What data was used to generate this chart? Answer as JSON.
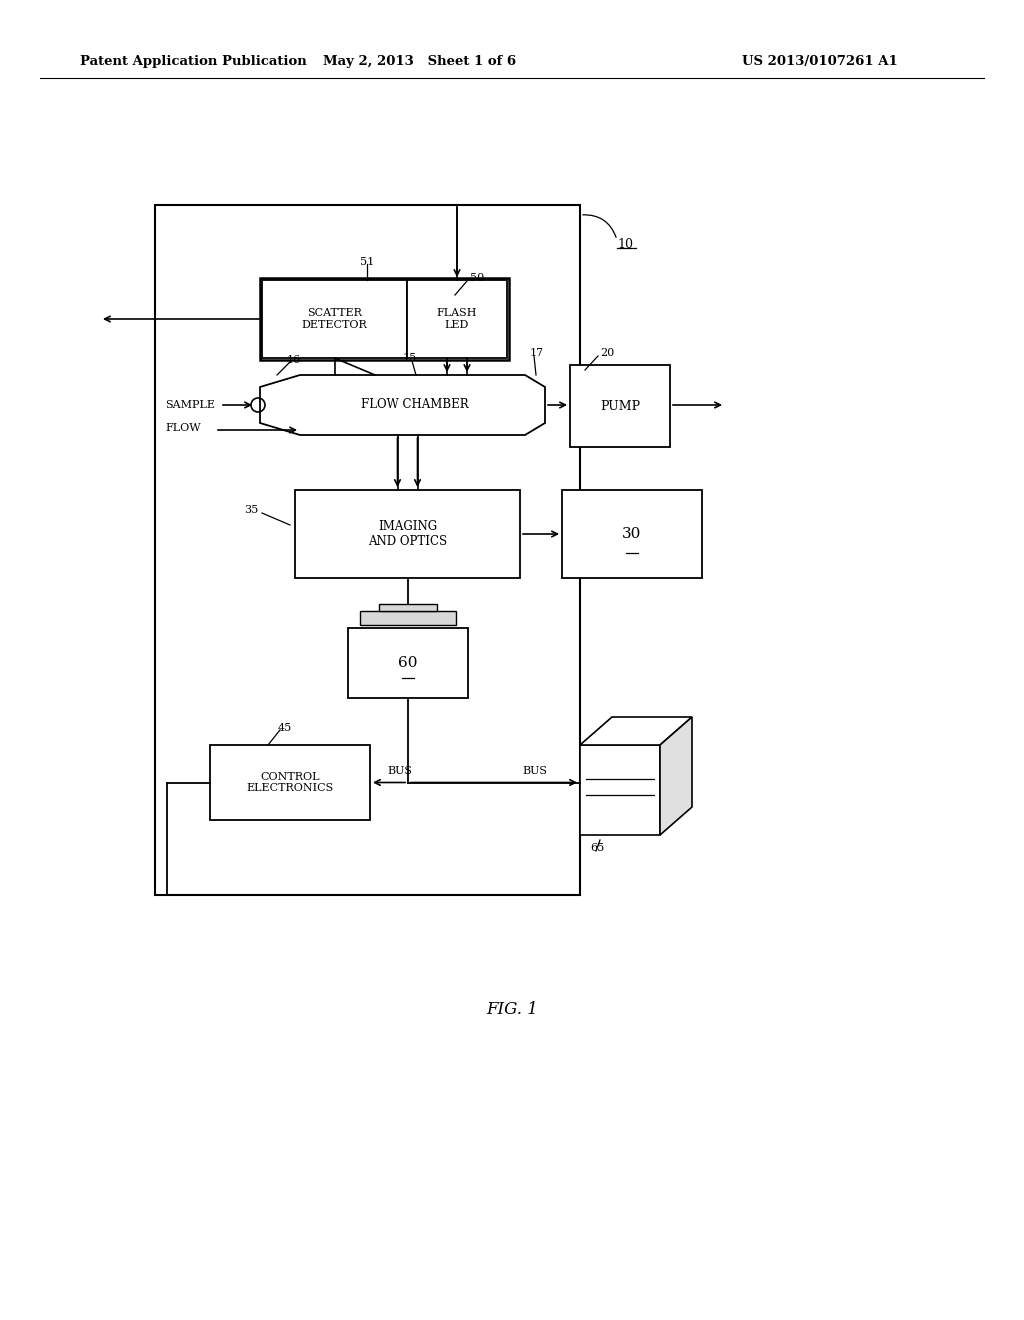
{
  "bg_color": "#ffffff",
  "header_text": "Patent Application Publication",
  "header_date": "May 2, 2013   Sheet 1 of 6",
  "header_patent": "US 2013/0107261 A1",
  "fig_label": "FIG. 1"
}
